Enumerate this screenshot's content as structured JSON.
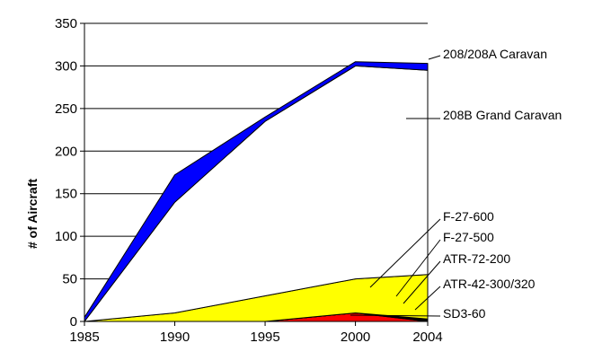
{
  "chart_data": {
    "type": "area",
    "stacked": true,
    "title": "",
    "xlabel": "",
    "ylabel": "# of Aircraft",
    "ylim": [
      0,
      350
    ],
    "yticks": [
      0,
      50,
      100,
      150,
      200,
      250,
      300,
      350
    ],
    "xlim": [
      1985,
      2004
    ],
    "xticks": [
      1985,
      1990,
      1995,
      2000,
      2004
    ],
    "grid": "horizontal",
    "legend": "right, labels with leader lines",
    "x": [
      1985,
      1990,
      1995,
      2000,
      2004
    ],
    "series": [
      {
        "name": "SD3-60",
        "color": "#ff0000",
        "values": [
          0,
          0,
          0,
          10,
          0
        ]
      },
      {
        "name": "ATR-42-300/320",
        "color": "#00ffff",
        "values": [
          0,
          0,
          0,
          0,
          1
        ]
      },
      {
        "name": "ATR-72-200",
        "color": "#00ff00",
        "values": [
          0,
          0,
          0,
          0,
          1
        ]
      },
      {
        "name": "F-27-500",
        "color": "#ff00ff",
        "values": [
          0,
          0,
          0,
          0,
          1
        ]
      },
      {
        "name": "F-27-600",
        "color": "#ffff00",
        "values": [
          0,
          10,
          30,
          40,
          52
        ]
      },
      {
        "name": "208B Grand Caravan",
        "color": "#ffffff",
        "values": [
          0,
          130,
          205,
          250,
          240
        ]
      },
      {
        "name": "208/208A Caravan",
        "color": "#0000ff",
        "values": [
          5,
          32,
          5,
          5,
          8
        ]
      }
    ],
    "cumulative_tops": [
      [
        0,
        0,
        0,
        10,
        0
      ],
      [
        0,
        0,
        0,
        10,
        1
      ],
      [
        0,
        0,
        0,
        10,
        2
      ],
      [
        0,
        0,
        0,
        10,
        3
      ],
      [
        0,
        10,
        30,
        50,
        55
      ],
      [
        0,
        140,
        235,
        300,
        295
      ],
      [
        5,
        172,
        240,
        305,
        303
      ]
    ]
  }
}
